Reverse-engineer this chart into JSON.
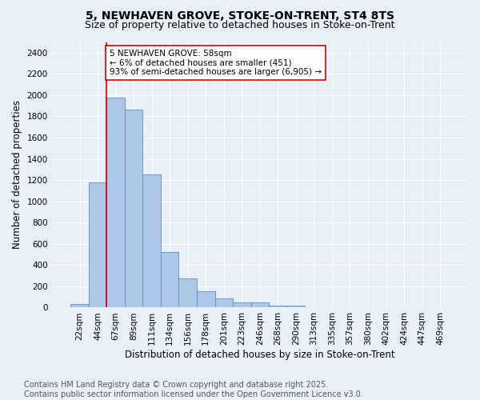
{
  "title": "5, NEWHAVEN GROVE, STOKE-ON-TRENT, ST4 8TS",
  "subtitle": "Size of property relative to detached houses in Stoke-on-Trent",
  "xlabel": "Distribution of detached houses by size in Stoke-on-Trent",
  "ylabel": "Number of detached properties",
  "footnote1": "Contains HM Land Registry data © Crown copyright and database right 2025.",
  "footnote2": "Contains public sector information licensed under the Open Government Licence v3.0.",
  "bar_labels": [
    "22sqm",
    "44sqm",
    "67sqm",
    "89sqm",
    "111sqm",
    "134sqm",
    "156sqm",
    "178sqm",
    "201sqm",
    "223sqm",
    "246sqm",
    "268sqm",
    "290sqm",
    "313sqm",
    "335sqm",
    "357sqm",
    "380sqm",
    "402sqm",
    "424sqm",
    "447sqm",
    "469sqm"
  ],
  "bar_values": [
    30,
    1175,
    1975,
    1860,
    1250,
    520,
    275,
    155,
    90,
    45,
    45,
    20,
    18,
    5,
    3,
    2,
    2,
    2,
    2,
    2,
    5
  ],
  "bar_color": "#aec6e8",
  "bar_edge_color": "#5a8fc2",
  "ylim": [
    0,
    2500
  ],
  "yticks": [
    0,
    200,
    400,
    600,
    800,
    1000,
    1200,
    1400,
    1600,
    1800,
    2000,
    2200,
    2400
  ],
  "vline_x": 1.5,
  "vline_color": "#cc0000",
  "annotation_text": "5 NEWHAVEN GROVE: 58sqm\n← 6% of detached houses are smaller (451)\n93% of semi-detached houses are larger (6,905) →",
  "annotation_box_color": "#ffffff",
  "annotation_box_edge": "#cc0000",
  "bg_color": "#eaf0f8",
  "grid_color": "#ffffff",
  "title_fontsize": 10,
  "subtitle_fontsize": 9,
  "axis_label_fontsize": 8.5,
  "tick_fontsize": 7.5,
  "annotation_fontsize": 7.5,
  "footnote_fontsize": 7
}
